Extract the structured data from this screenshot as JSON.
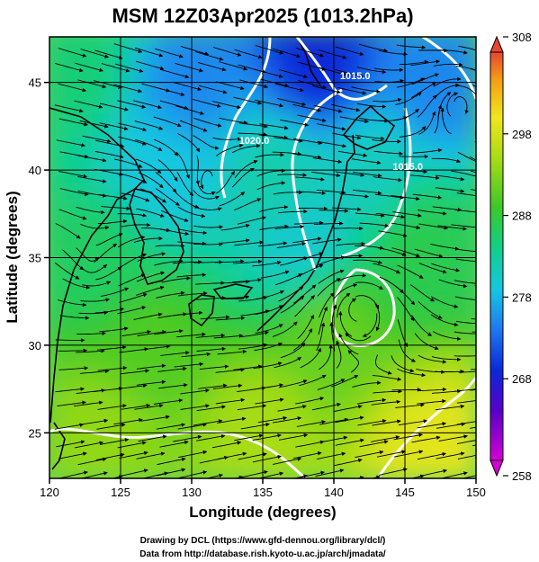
{
  "chart_data": {
    "type": "heatmap",
    "title": "MSM 12Z03Apr2025 (1013.2hPa)",
    "xlabel": "Longitude (degrees)",
    "ylabel": "Latitude  (degrees)",
    "xlim": [
      120,
      150
    ],
    "ylim": [
      22.4,
      47.6
    ],
    "x_ticks": [
      120,
      125,
      130,
      135,
      140,
      145,
      150
    ],
    "y_ticks": [
      25,
      30,
      35,
      40,
      45
    ],
    "grid": true,
    "colorbar": {
      "min": 258,
      "max": 308,
      "ticks": [
        258,
        268,
        278,
        288,
        298,
        308
      ],
      "colors": [
        "#d400d4",
        "#5a00c8",
        "#0a28d8",
        "#1e78f0",
        "#14c8e0",
        "#10d08a",
        "#3cc828",
        "#a8dc14",
        "#f0e61e",
        "#f5a014",
        "#e64632"
      ],
      "placement": "right"
    },
    "temperature_field_samples": [
      {
        "lon": 122,
        "lat": 46,
        "value": 284
      },
      {
        "lon": 130,
        "lat": 45,
        "value": 274
      },
      {
        "lon": 139,
        "lat": 46,
        "value": 268
      },
      {
        "lon": 147,
        "lat": 45,
        "value": 274
      },
      {
        "lon": 128,
        "lat": 40,
        "value": 278
      },
      {
        "lon": 136,
        "lat": 40,
        "value": 281
      },
      {
        "lon": 143,
        "lat": 40,
        "value": 280
      },
      {
        "lon": 124,
        "lat": 35,
        "value": 285
      },
      {
        "lon": 138,
        "lat": 36,
        "value": 279
      },
      {
        "lon": 146,
        "lat": 36,
        "value": 286
      },
      {
        "lon": 127,
        "lat": 30,
        "value": 289
      },
      {
        "lon": 140,
        "lat": 31,
        "value": 290
      },
      {
        "lon": 124,
        "lat": 25,
        "value": 292
      },
      {
        "lon": 135,
        "lat": 25,
        "value": 293
      },
      {
        "lon": 147,
        "lat": 24,
        "value": 297
      }
    ],
    "pressure_contours": [
      {
        "label": "1020.0",
        "lon": 134.4,
        "lat": 41.5
      },
      {
        "label": "1015.0",
        "lon": 141.5,
        "lat": 45.2
      },
      {
        "label": "1015.0",
        "lon": 145.2,
        "lat": 40.0
      }
    ],
    "annotations": [
      "Drawing by DCL (https://www.gfd-dennou.org/library/dcl/)",
      "Data from http://database.rish.kyoto-u.ac.jp/arch/jmadata/"
    ]
  },
  "credits": {
    "line1": "Drawing by DCL (https://www.gfd-dennou.org/library/dcl/)",
    "line2": "Data from http://database.rish.kyoto-u.ac.jp/arch/jmadata/"
  }
}
